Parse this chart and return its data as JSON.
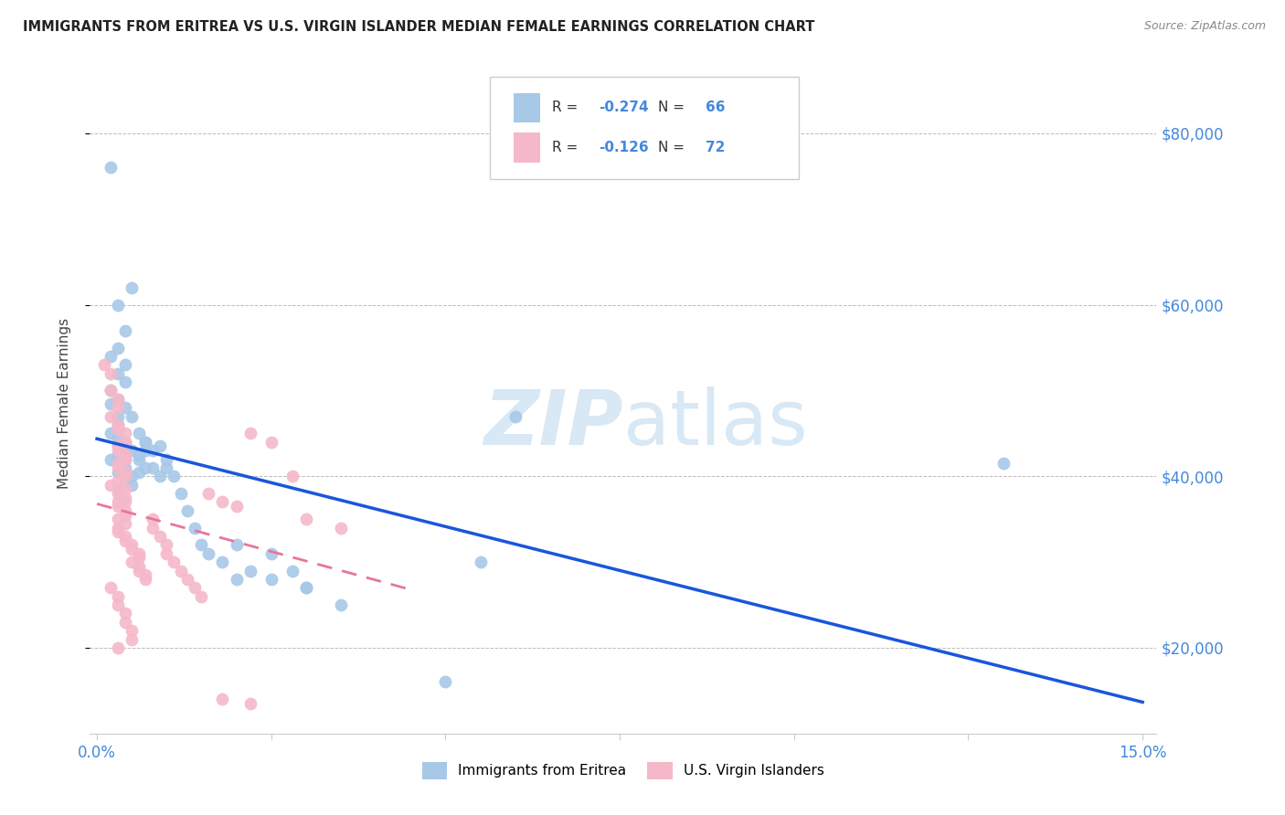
{
  "title": "IMMIGRANTS FROM ERITREA VS U.S. VIRGIN ISLANDER MEDIAN FEMALE EARNINGS CORRELATION CHART",
  "source": "Source: ZipAtlas.com",
  "ylabel": "Median Female Earnings",
  "ylim": [
    10000,
    87000
  ],
  "xlim": [
    -0.001,
    0.152
  ],
  "yticks": [
    20000,
    40000,
    60000,
    80000
  ],
  "ytick_labels": [
    "$20,000",
    "$40,000",
    "$60,000",
    "$80,000"
  ],
  "xticks": [
    0.0,
    0.025,
    0.05,
    0.075,
    0.1,
    0.125,
    0.15
  ],
  "xtick_labels_show": [
    "0.0%",
    "",
    "",
    "",
    "",
    "",
    "15.0%"
  ],
  "legend1_label_r": "-0.274",
  "legend1_label_n": "66",
  "legend2_label_r": "-0.126",
  "legend2_label_n": "72",
  "series1_color": "#a8c8e8",
  "series2_color": "#f5b8c8",
  "trend1_color": "#1a56db",
  "trend2_color": "#e8759a",
  "background_color": "#ffffff",
  "grid_color": "#bbbbbb",
  "title_color": "#222222",
  "axis_label_color": "#444444",
  "tick_label_color": "#4488dd",
  "watermark_color": "#d8e8f5",
  "series1_name": "Immigrants from Eritrea",
  "series2_name": "U.S. Virgin Islanders",
  "trend1_intercept": 45000,
  "trend1_slope": -166667,
  "trend2_intercept": 36500,
  "trend2_slope": -100000,
  "series1_x": [
    0.002,
    0.005,
    0.003,
    0.004,
    0.003,
    0.002,
    0.004,
    0.003,
    0.004,
    0.002,
    0.003,
    0.002,
    0.004,
    0.003,
    0.005,
    0.003,
    0.003,
    0.002,
    0.003,
    0.004,
    0.003,
    0.004,
    0.003,
    0.002,
    0.004,
    0.003,
    0.004,
    0.003,
    0.005,
    0.004,
    0.005,
    0.006,
    0.007,
    0.005,
    0.006,
    0.007,
    0.006,
    0.007,
    0.006,
    0.007,
    0.008,
    0.008,
    0.009,
    0.009,
    0.01,
    0.01,
    0.011,
    0.012,
    0.013,
    0.014,
    0.015,
    0.016,
    0.018,
    0.02,
    0.022,
    0.025,
    0.028,
    0.03,
    0.055,
    0.06,
    0.13,
    0.02,
    0.025,
    0.03,
    0.035,
    0.05
  ],
  "series1_y": [
    76000,
    62000,
    60000,
    57000,
    55000,
    54000,
    53000,
    52000,
    51000,
    50000,
    49000,
    48500,
    48000,
    47000,
    47000,
    46000,
    45500,
    45000,
    44500,
    44000,
    43500,
    43000,
    42500,
    42000,
    42000,
    41500,
    41000,
    40500,
    40000,
    39500,
    39000,
    45000,
    44000,
    43000,
    42000,
    41000,
    40500,
    43000,
    42500,
    44000,
    43000,
    41000,
    40000,
    43500,
    42000,
    41000,
    40000,
    38000,
    36000,
    34000,
    32000,
    31000,
    30000,
    32000,
    29000,
    28000,
    29000,
    27000,
    30000,
    47000,
    41500,
    28000,
    31000,
    27000,
    25000,
    16000
  ],
  "series2_x": [
    0.001,
    0.002,
    0.002,
    0.003,
    0.003,
    0.002,
    0.003,
    0.003,
    0.004,
    0.004,
    0.003,
    0.003,
    0.004,
    0.004,
    0.003,
    0.003,
    0.004,
    0.004,
    0.003,
    0.002,
    0.003,
    0.003,
    0.004,
    0.003,
    0.003,
    0.004,
    0.004,
    0.003,
    0.004,
    0.003,
    0.003,
    0.004,
    0.004,
    0.005,
    0.005,
    0.006,
    0.006,
    0.005,
    0.006,
    0.006,
    0.007,
    0.007,
    0.008,
    0.008,
    0.009,
    0.01,
    0.01,
    0.011,
    0.012,
    0.013,
    0.014,
    0.015,
    0.016,
    0.018,
    0.02,
    0.022,
    0.025,
    0.028,
    0.03,
    0.035,
    0.002,
    0.003,
    0.003,
    0.004,
    0.004,
    0.005,
    0.005,
    0.003,
    0.004,
    0.004,
    0.018,
    0.022
  ],
  "series2_y": [
    53000,
    52000,
    50000,
    49000,
    48000,
    47000,
    46000,
    45500,
    45000,
    44000,
    43500,
    43000,
    42500,
    42000,
    41500,
    41000,
    40500,
    40000,
    39500,
    39000,
    38500,
    38000,
    37500,
    37000,
    36500,
    36000,
    35500,
    35000,
    34500,
    34000,
    33500,
    33000,
    32500,
    32000,
    31500,
    31000,
    30500,
    30000,
    29500,
    29000,
    28500,
    28000,
    35000,
    34000,
    33000,
    32000,
    31000,
    30000,
    29000,
    28000,
    27000,
    26000,
    38000,
    37000,
    36500,
    45000,
    44000,
    40000,
    35000,
    34000,
    27000,
    26000,
    25000,
    24000,
    23000,
    22000,
    21000,
    20000,
    38500,
    37000,
    14000,
    13500
  ]
}
